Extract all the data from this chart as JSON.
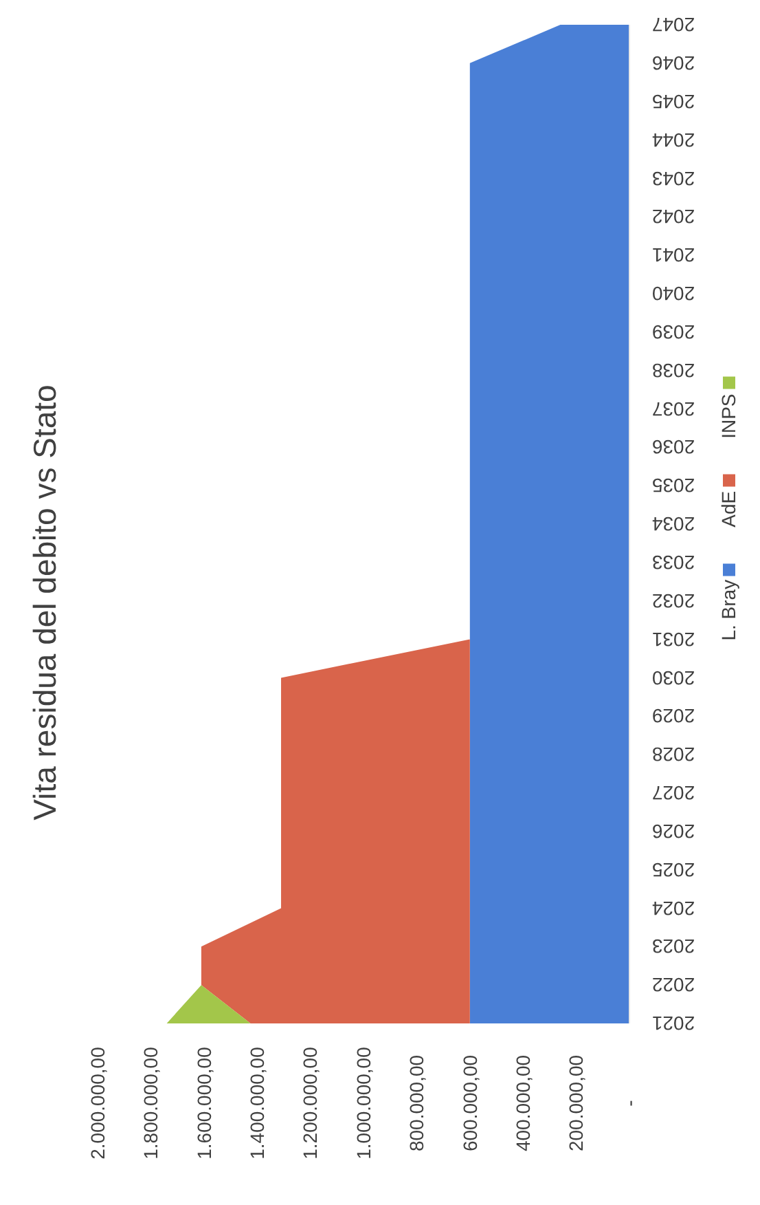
{
  "chart_data": {
    "type": "area",
    "title": "Vita residua del debito vs Stato",
    "stacked": true,
    "orientation": "horizontal",
    "legend": "right",
    "grid": false,
    "categories": [
      "2047",
      "2046",
      "2045",
      "2044",
      "2043",
      "2042",
      "2041",
      "2040",
      "2039",
      "2038",
      "2037",
      "2036",
      "2035",
      "2034",
      "2033",
      "2032",
      "2031",
      "2030",
      "2029",
      "2028",
      "2027",
      "2026",
      "2025",
      "2024",
      "2023",
      "2022",
      "2021"
    ],
    "series": [
      {
        "name": "L. Bray",
        "color": "#4a7fd6",
        "values": [
          260000,
          600000,
          600000,
          600000,
          600000,
          600000,
          600000,
          600000,
          600000,
          600000,
          600000,
          600000,
          600000,
          600000,
          600000,
          600000,
          600000,
          600000,
          600000,
          600000,
          600000,
          600000,
          600000,
          600000,
          600000,
          600000,
          600000
        ]
      },
      {
        "name": "AdE",
        "color": "#d9644b",
        "values": [
          0,
          0,
          0,
          0,
          0,
          0,
          0,
          0,
          0,
          0,
          0,
          0,
          0,
          0,
          0,
          0,
          0,
          710000,
          710000,
          710000,
          710000,
          710000,
          710000,
          710000,
          1010000,
          1010000,
          825000
        ]
      },
      {
        "name": "INPS",
        "color": "#a3c64a",
        "values": [
          0,
          0,
          0,
          0,
          0,
          0,
          0,
          0,
          0,
          0,
          0,
          0,
          0,
          0,
          0,
          0,
          0,
          0,
          0,
          0,
          0,
          0,
          0,
          0,
          0,
          0,
          315000
        ]
      }
    ],
    "xlim": [
      2000000,
      0
    ],
    "xticks": [
      {
        "value": 2000000,
        "label": "2.000.000,00"
      },
      {
        "value": 1800000,
        "label": "1.800.000,00"
      },
      {
        "value": 1600000,
        "label": "1.600.000,00"
      },
      {
        "value": 1400000,
        "label": "1.400.000,00"
      },
      {
        "value": 1200000,
        "label": "1.200.000,00"
      },
      {
        "value": 1000000,
        "label": "1.000.000,00"
      },
      {
        "value": 800000,
        "label": "800.000,00"
      },
      {
        "value": 600000,
        "label": "600.000,00"
      },
      {
        "value": 400000,
        "label": "400.000,00"
      },
      {
        "value": 200000,
        "label": "200.000,00"
      },
      {
        "value": 0,
        "label": "-"
      }
    ]
  }
}
